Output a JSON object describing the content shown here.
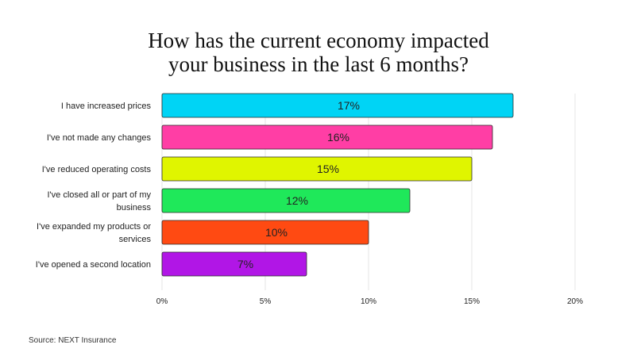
{
  "chart_data": {
    "type": "bar",
    "orientation": "horizontal",
    "title_lines": [
      "How has the current economy impacted",
      "your business in the last 6 months?"
    ],
    "categories": [
      [
        "I have increased prices"
      ],
      [
        "I've not made any changes"
      ],
      [
        "I've reduced operating costs"
      ],
      [
        "I've closed all or part of my",
        "business"
      ],
      [
        "I've expanded my products or",
        "services"
      ],
      [
        "I've opened a second location"
      ]
    ],
    "values": [
      17,
      16,
      15,
      12,
      10,
      7
    ],
    "value_labels": [
      "17%",
      "16%",
      "15%",
      "12%",
      "10%",
      "7%"
    ],
    "bar_colors": [
      "#00d4f5",
      "#ff3ea5",
      "#e0f500",
      "#1fe85a",
      "#ff4a12",
      "#b116e6"
    ],
    "xlim": [
      0,
      20
    ],
    "xticks": [
      0,
      5,
      10,
      15,
      20
    ],
    "xtick_labels": [
      "0%",
      "5%",
      "10%",
      "15%",
      "20%"
    ],
    "xlabel": "",
    "ylabel": "",
    "grid": true,
    "legend": "none"
  },
  "source": "Source: NEXT Insurance"
}
